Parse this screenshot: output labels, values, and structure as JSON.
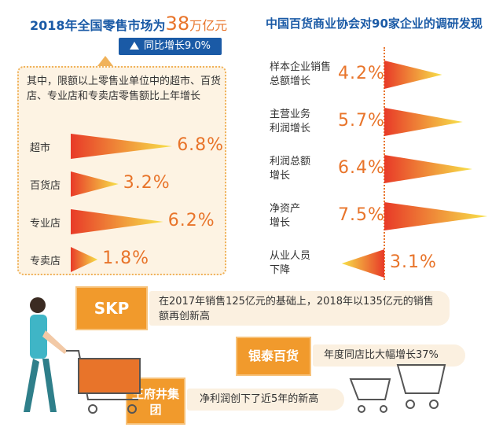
{
  "left": {
    "title_prefix": "2018年全国零售市场为",
    "title_value": "38",
    "title_unit": "万亿元",
    "growth": "同比增长9.0%",
    "description": "其中，限额以上零售业单位中的超市、百货店、专业店和专卖店零售额比上年增长"
  },
  "right": {
    "title": "中国百货商业协会对90家企业的调研发现"
  },
  "notes": {
    "skp_brand": "SKP",
    "skp_text": "在2017年销售125亿元的基础上，2018年以135亿元的销售额再创新高",
    "yintai_brand": "银泰百货",
    "yintai_text": "年度同店比大幅增长37%",
    "wfj_brand": "王府井集团",
    "wfj_text": "净利润创下了近5年的新高"
  },
  "colors": {
    "orange": "#e8742a",
    "blue": "#1a5aa6",
    "yellow": "#f7e24a",
    "red": "#e83a28"
  },
  "chart_data": [
    {
      "type": "bar",
      "categories": [
        "超市",
        "百货店",
        "专业店",
        "专卖店"
      ],
      "values": [
        6.8,
        3.2,
        6.2,
        1.8
      ],
      "value_labels": [
        "6.8%",
        "3.2%",
        "6.2%",
        "1.8%"
      ],
      "orientation": "horizontal"
    },
    {
      "type": "bar",
      "categories": [
        "样本企业销售总额增长",
        "主营业务利润增长",
        "利润总额增长",
        "净资产增长",
        "从业人员下降"
      ],
      "values": [
        4.2,
        5.7,
        6.4,
        7.5,
        -3.1
      ],
      "value_labels": [
        "4.2%",
        "5.7%",
        "6.4%",
        "7.5%",
        "3.1%"
      ],
      "orientation": "horizontal"
    }
  ]
}
